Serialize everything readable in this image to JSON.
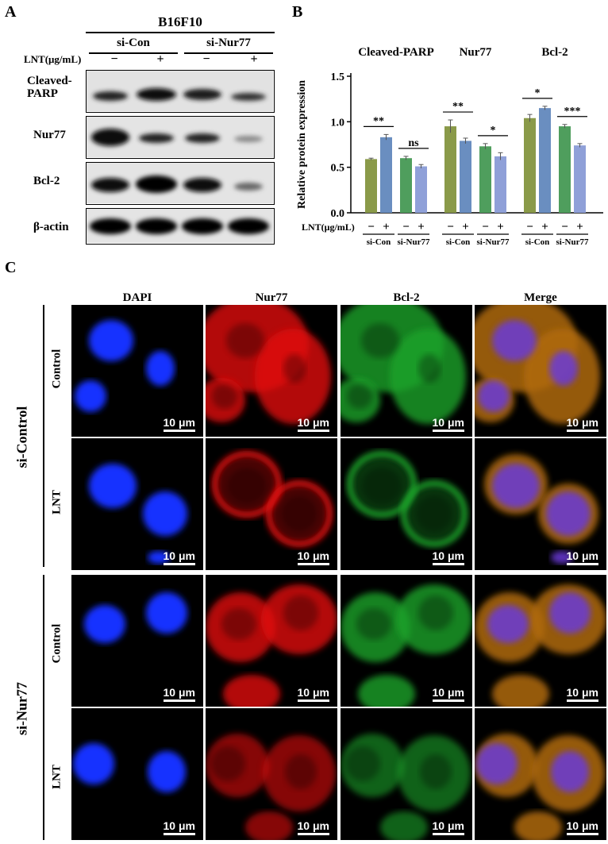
{
  "panels": {
    "a": "A",
    "b": "B",
    "c": "C"
  },
  "panel_a": {
    "cell_line": "B16F10",
    "groups": [
      "si-Con",
      "si-Nur77"
    ],
    "treatment_label": "LNT(μg/mL)",
    "signs": [
      "−",
      "+",
      "−",
      "+"
    ],
    "rows": [
      {
        "label": "Cleaved-\nPARP"
      },
      {
        "label": "Nur77"
      },
      {
        "label": "Bcl-2"
      },
      {
        "label": "β-actin"
      }
    ]
  },
  "chart_data": {
    "type": "bar",
    "ylabel": "Relative protein expression",
    "ylim": [
      0,
      1.5
    ],
    "yticks": [
      "0.0",
      "0.5",
      "1.0",
      "1.5"
    ],
    "treatment_label": "LNT(μg/mL)",
    "signs": [
      "−",
      "+",
      "−",
      "+"
    ],
    "group_labels": [
      "si-Con",
      "si-Nur77"
    ],
    "series_colors": [
      "#8a9a49",
      "#6a8ec0",
      "#4f9e5d",
      "#8fa0d8"
    ],
    "proteins": [
      {
        "name": "Cleaved-PARP",
        "values": [
          0.59,
          0.83,
          0.6,
          0.51
        ],
        "errors": [
          0.01,
          0.03,
          0.02,
          0.02
        ],
        "sig": [
          {
            "text": "**",
            "pair": [
              0,
              1
            ]
          },
          {
            "text": "ns",
            "pair": [
              2,
              3
            ]
          }
        ]
      },
      {
        "name": "Nur77",
        "values": [
          0.95,
          0.79,
          0.73,
          0.62
        ],
        "errors": [
          0.07,
          0.03,
          0.03,
          0.04
        ],
        "sig": [
          {
            "text": "**",
            "pair": [
              0,
              1
            ]
          },
          {
            "text": "*",
            "pair": [
              2,
              3
            ]
          }
        ]
      },
      {
        "name": "Bcl-2",
        "values": [
          1.04,
          1.15,
          0.95,
          0.74
        ],
        "errors": [
          0.04,
          0.02,
          0.02,
          0.02
        ],
        "sig": [
          {
            "text": "*",
            "pair": [
              0,
              1
            ]
          },
          {
            "text": "***",
            "pair": [
              2,
              3
            ]
          }
        ]
      }
    ]
  },
  "panel_c": {
    "columns": [
      {
        "label": "DAPI",
        "color": "#1f2fa8"
      },
      {
        "label": "Nur77",
        "color": "#d42020"
      },
      {
        "label": "Bcl-2",
        "color": "#2e9e3a"
      },
      {
        "label": "Merge",
        "color": "#000000"
      }
    ],
    "groups": [
      {
        "label": "si-Control",
        "rows": [
          "Control",
          "LNT"
        ]
      },
      {
        "label": "si-Nur77",
        "rows": [
          "Control",
          "LNT"
        ]
      }
    ],
    "scale_bar": "10 μm"
  }
}
